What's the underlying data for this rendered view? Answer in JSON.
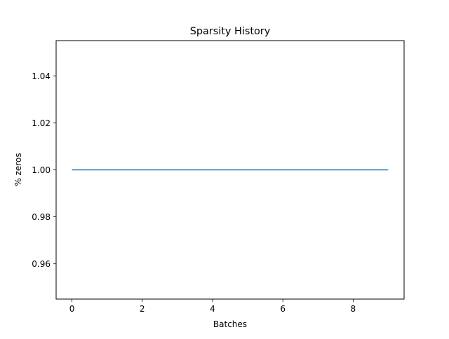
{
  "chart_data": {
    "type": "line",
    "title": "Sparsity History",
    "xlabel": "Batches",
    "ylabel": "% zeros",
    "x": [
      0,
      1,
      2,
      3,
      4,
      5,
      6,
      7,
      8,
      9
    ],
    "series": [
      {
        "values": [
          1.0,
          1.0,
          1.0,
          1.0,
          1.0,
          1.0,
          1.0,
          1.0,
          1.0,
          1.0
        ],
        "color": "#1f77b4"
      }
    ],
    "xlim": [
      -0.45,
      9.45
    ],
    "ylim": [
      0.945,
      1.055
    ],
    "xticks": [
      0,
      2,
      4,
      6,
      8
    ],
    "xtick_labels": [
      "0",
      "2",
      "4",
      "6",
      "8"
    ],
    "yticks": [
      0.96,
      0.98,
      1.0,
      1.02,
      1.04
    ],
    "ytick_labels": [
      "0.96",
      "0.98",
      "1.00",
      "1.02",
      "1.04"
    ],
    "grid": false,
    "legend": false
  }
}
